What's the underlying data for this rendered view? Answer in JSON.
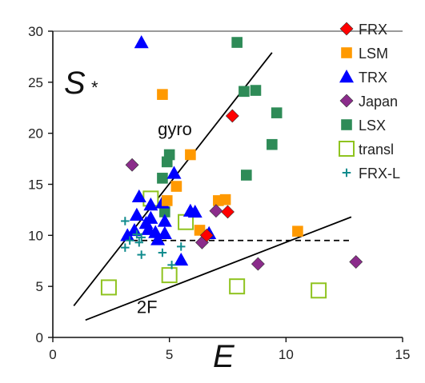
{
  "chart_data": {
    "type": "scatter",
    "title": "",
    "xlabel": "E",
    "ylabel": "S",
    "ylabel_sub": "*",
    "xlim": [
      0,
      15
    ],
    "ylim": [
      0,
      30
    ],
    "xticks": [
      "0",
      "5",
      "10",
      "15"
    ],
    "yticks": [
      "0",
      "5",
      "10",
      "15",
      "20",
      "25",
      "30"
    ],
    "legend_position": "right",
    "series": [
      {
        "name": "FRX",
        "marker": "diamond",
        "color": "#ff0000",
        "points": [
          [
            7.7,
            21.7
          ],
          [
            7.5,
            12.3
          ],
          [
            6.6,
            10.0
          ]
        ]
      },
      {
        "name": "LSM",
        "marker": "square",
        "color": "#ff9900",
        "points": [
          [
            4.7,
            23.8
          ],
          [
            5.9,
            17.9
          ],
          [
            5.3,
            14.8
          ],
          [
            4.9,
            13.4
          ],
          [
            7.1,
            13.4
          ],
          [
            7.4,
            13.5
          ],
          [
            6.3,
            10.5
          ],
          [
            10.5,
            10.4
          ]
        ]
      },
      {
        "name": "TRX",
        "marker": "triangle",
        "color": "#0000ff",
        "points": [
          [
            3.8,
            28.9
          ],
          [
            5.2,
            16.1
          ],
          [
            3.7,
            13.8
          ],
          [
            4.2,
            13.0
          ],
          [
            4.7,
            13.2
          ],
          [
            3.6,
            12.0
          ],
          [
            4.2,
            11.7
          ],
          [
            5.9,
            12.4
          ],
          [
            6.1,
            12.3
          ],
          [
            4.0,
            11.2
          ],
          [
            4.8,
            11.4
          ],
          [
            3.5,
            10.5
          ],
          [
            4.1,
            10.6
          ],
          [
            4.4,
            10.3
          ],
          [
            4.8,
            10.2
          ],
          [
            3.2,
            10.0
          ],
          [
            4.5,
            9.6
          ],
          [
            6.7,
            10.2
          ],
          [
            5.5,
            7.6
          ]
        ]
      },
      {
        "name": "Japan",
        "marker": "diamond",
        "color": "#8b2c8b",
        "points": [
          [
            3.4,
            16.9
          ],
          [
            7.0,
            12.4
          ],
          [
            6.4,
            9.3
          ],
          [
            8.8,
            7.2
          ],
          [
            13.0,
            7.4
          ]
        ]
      },
      {
        "name": "LSX",
        "marker": "square",
        "color": "#2e8b57",
        "points": [
          [
            7.9,
            28.9
          ],
          [
            8.2,
            24.1
          ],
          [
            8.7,
            24.2
          ],
          [
            9.6,
            22.0
          ],
          [
            9.4,
            18.9
          ],
          [
            5.0,
            17.9
          ],
          [
            4.9,
            17.2
          ],
          [
            4.7,
            15.6
          ],
          [
            8.3,
            15.9
          ],
          [
            4.8,
            12.3
          ]
        ]
      },
      {
        "name": "transl",
        "marker": "hollow-square",
        "color": "#8fc31f",
        "points": [
          [
            4.2,
            13.6
          ],
          [
            5.7,
            11.3
          ],
          [
            2.4,
            4.9
          ],
          [
            5.0,
            6.1
          ],
          [
            7.9,
            5.0
          ],
          [
            11.4,
            4.6
          ]
        ]
      },
      {
        "name": "FRX-L",
        "marker": "plus",
        "color": "#0f8b8d",
        "points": [
          [
            3.1,
            11.4
          ],
          [
            3.6,
            10.1
          ],
          [
            3.8,
            9.8
          ],
          [
            3.3,
            9.5
          ],
          [
            3.7,
            9.3
          ],
          [
            3.1,
            8.8
          ],
          [
            3.8,
            8.1
          ],
          [
            4.7,
            8.3
          ],
          [
            5.5,
            8.9
          ],
          [
            5.1,
            7.1
          ]
        ]
      }
    ],
    "lines": [
      {
        "label": "gyro",
        "style": "solid",
        "x": [
          0.9,
          9.4
        ],
        "y": [
          3.1,
          27.9
        ]
      },
      {
        "label": "2F",
        "style": "solid",
        "x": [
          1.4,
          12.8
        ],
        "y": [
          1.7,
          11.8
        ]
      },
      {
        "label": "",
        "style": "dashed",
        "x": [
          3.4,
          12.7
        ],
        "y": [
          9.5,
          9.5
        ]
      }
    ]
  }
}
